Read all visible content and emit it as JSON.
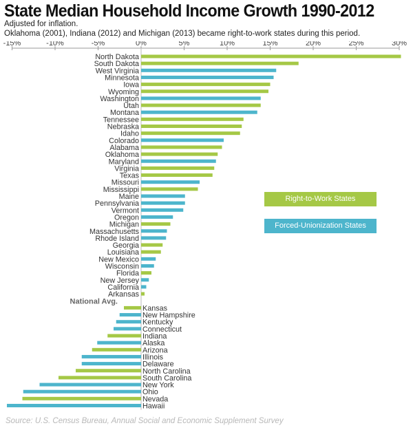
{
  "header": {
    "title": "State Median Household Income Growth 1990-2012",
    "subtitle1": "Adjusted for inflation.",
    "subtitle2": "Oklahoma (2001), Indiana (2012) and Michigan (2013) became right-to-work states during this period."
  },
  "source": "Source: U.S. Census Bureau, Annual Social and Economic Supplement Survey",
  "colors": {
    "rtw": "#a5c846",
    "union": "#4db5cc",
    "axis": "#999999"
  },
  "legend": {
    "rtw_label": "Right-to-Work States",
    "union_label": "Forced-Unionization States"
  },
  "chart_data": {
    "type": "bar",
    "orientation": "horizontal",
    "title": "State Median Household Income Growth 1990-2012",
    "xlim": [
      -15,
      30
    ],
    "x_ticks": [
      -15,
      -10,
      -5,
      0,
      5,
      10,
      15,
      20,
      25,
      30
    ],
    "x_tick_labels": [
      "-15%",
      "-10%",
      "-5%",
      "0%",
      "5%",
      "10%",
      "15%",
      "20%",
      "25%",
      "30%"
    ],
    "unit": "%",
    "series": [
      {
        "name": "Right-to-Work States",
        "color": "#a5c846"
      },
      {
        "name": "Forced-Unionization States",
        "color": "#4db5cc"
      }
    ],
    "bars": [
      {
        "label": "North Dakota",
        "value": 30.2,
        "group": "rtw"
      },
      {
        "label": "South Dakota",
        "value": 18.3,
        "group": "rtw"
      },
      {
        "label": "West Virginia",
        "value": 15.7,
        "group": "union"
      },
      {
        "label": "Minnesota",
        "value": 15.4,
        "group": "union"
      },
      {
        "label": "Iowa",
        "value": 15.0,
        "group": "rtw"
      },
      {
        "label": "Wyoming",
        "value": 14.8,
        "group": "rtw"
      },
      {
        "label": "Washington",
        "value": 13.9,
        "group": "union"
      },
      {
        "label": "Utah",
        "value": 13.9,
        "group": "rtw"
      },
      {
        "label": "Montana",
        "value": 13.5,
        "group": "union"
      },
      {
        "label": "Tennessee",
        "value": 11.9,
        "group": "rtw"
      },
      {
        "label": "Nebraska",
        "value": 11.7,
        "group": "rtw"
      },
      {
        "label": "Idaho",
        "value": 11.5,
        "group": "rtw"
      },
      {
        "label": "Colorado",
        "value": 9.6,
        "group": "union"
      },
      {
        "label": "Alabama",
        "value": 9.4,
        "group": "rtw"
      },
      {
        "label": "Oklahoma",
        "value": 8.9,
        "group": "rtw"
      },
      {
        "label": "Maryland",
        "value": 8.7,
        "group": "union"
      },
      {
        "label": "Virginia",
        "value": 8.5,
        "group": "rtw"
      },
      {
        "label": "Texas",
        "value": 8.3,
        "group": "rtw"
      },
      {
        "label": "Missouri",
        "value": 6.8,
        "group": "union"
      },
      {
        "label": "Mississippi",
        "value": 6.6,
        "group": "rtw"
      },
      {
        "label": "Maine",
        "value": 5.1,
        "group": "union"
      },
      {
        "label": "Pennsylvania",
        "value": 5.1,
        "group": "union"
      },
      {
        "label": "Vermont",
        "value": 4.9,
        "group": "union"
      },
      {
        "label": "Oregon",
        "value": 3.7,
        "group": "union"
      },
      {
        "label": "Michigan",
        "value": 3.4,
        "group": "rtw"
      },
      {
        "label": "Massachusetts",
        "value": 3.0,
        "group": "union"
      },
      {
        "label": "Rhode Island",
        "value": 2.9,
        "group": "union"
      },
      {
        "label": "Georgia",
        "value": 2.5,
        "group": "rtw"
      },
      {
        "label": "Louisiana",
        "value": 2.3,
        "group": "rtw"
      },
      {
        "label": "New Mexico",
        "value": 1.7,
        "group": "union"
      },
      {
        "label": "Wisconsin",
        "value": 1.5,
        "group": "union"
      },
      {
        "label": "Florida",
        "value": 1.2,
        "group": "rtw"
      },
      {
        "label": "New Jersey",
        "value": 0.9,
        "group": "union"
      },
      {
        "label": "California",
        "value": 0.6,
        "group": "union"
      },
      {
        "label": "Arkansas",
        "value": 0.4,
        "group": "rtw"
      },
      {
        "label": "National Avg.",
        "value": 0,
        "group": "avg"
      },
      {
        "label": "Kansas",
        "value": -2.0,
        "group": "rtw"
      },
      {
        "label": "New Hampshire",
        "value": -2.5,
        "group": "union"
      },
      {
        "label": "Kentucky",
        "value": -2.9,
        "group": "union"
      },
      {
        "label": "Connecticut",
        "value": -3.2,
        "group": "union"
      },
      {
        "label": "Indiana",
        "value": -3.9,
        "group": "rtw"
      },
      {
        "label": "Alaska",
        "value": -5.1,
        "group": "union"
      },
      {
        "label": "Arizona",
        "value": -5.7,
        "group": "rtw"
      },
      {
        "label": "Illinois",
        "value": -6.9,
        "group": "union"
      },
      {
        "label": "Delaware",
        "value": -6.9,
        "group": "union"
      },
      {
        "label": "North Carolina",
        "value": -7.6,
        "group": "rtw"
      },
      {
        "label": "South Carolina",
        "value": -9.6,
        "group": "rtw"
      },
      {
        "label": "New York",
        "value": -11.8,
        "group": "union"
      },
      {
        "label": "Ohio",
        "value": -13.7,
        "group": "union"
      },
      {
        "label": "Nevada",
        "value": -13.8,
        "group": "rtw"
      },
      {
        "label": "Hawaii",
        "value": -15.6,
        "group": "union"
      }
    ]
  }
}
